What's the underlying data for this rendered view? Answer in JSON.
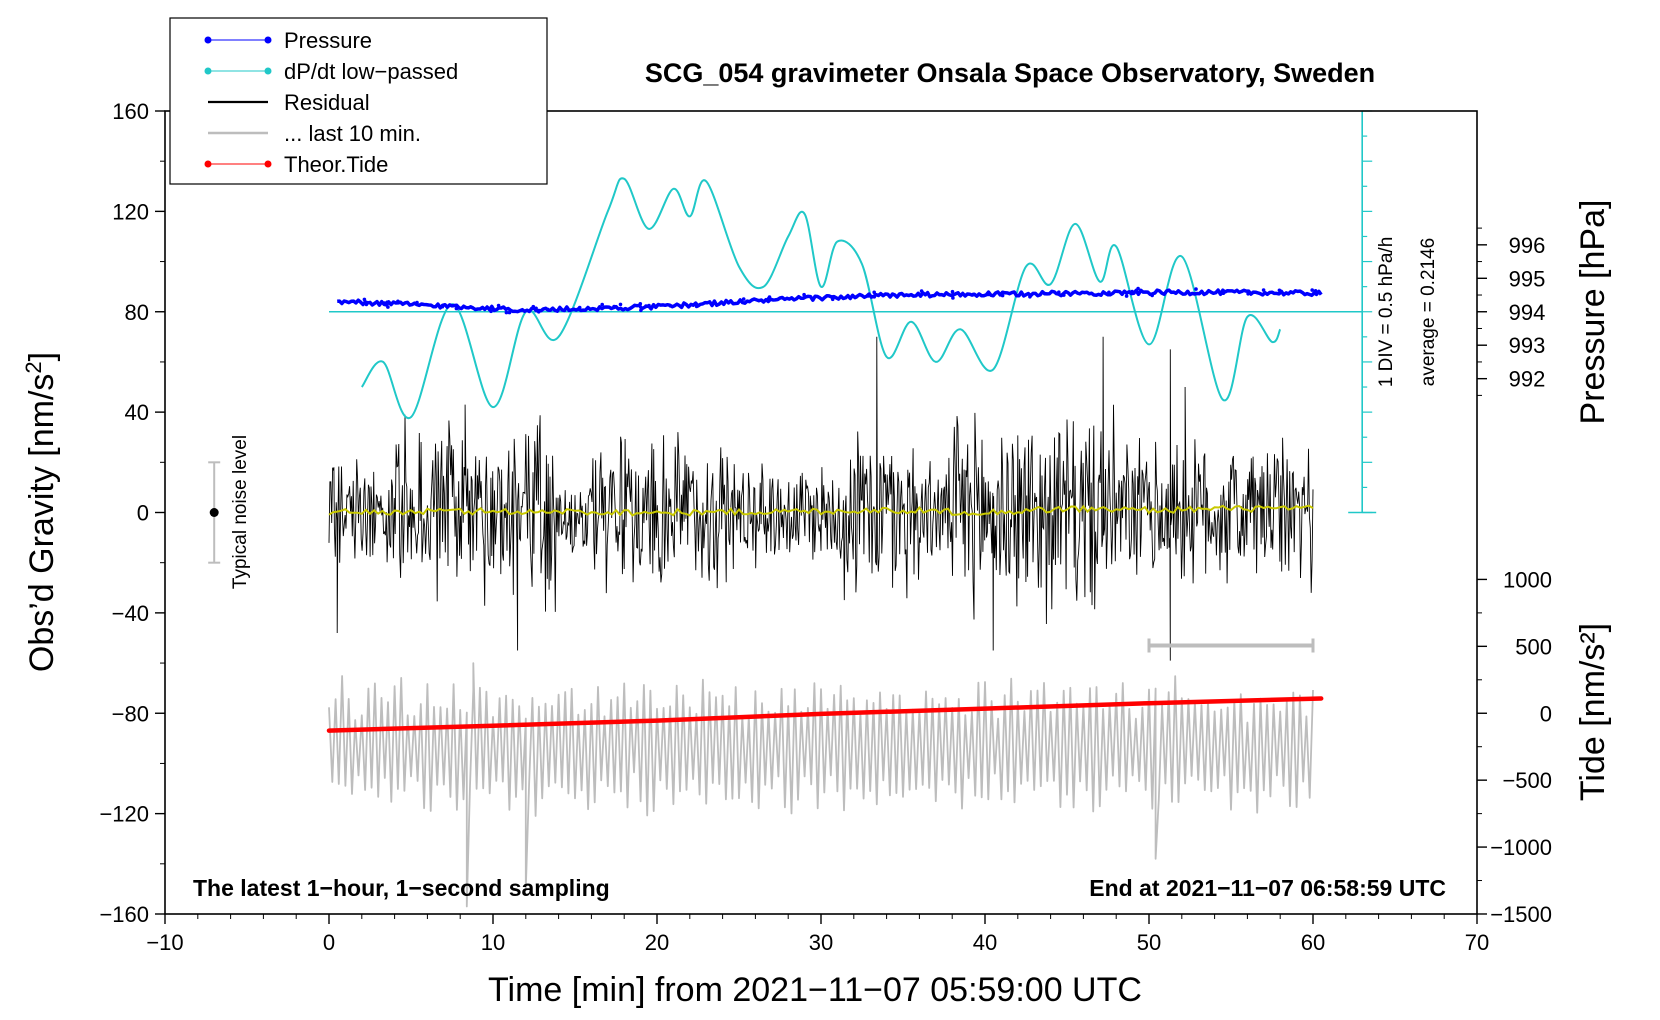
{
  "chart_data": {
    "type": "line",
    "title": "SCG_054 gravimeter Onsala Space Observatory, Sweden",
    "xlabel": "Time [min] from 2021−11−07 05:59:00 UTC",
    "ylabel_left": "Obs’d Gravity [nm/s²]",
    "ylabel_right_pressure": "Pressure [hPa]",
    "ylabel_right_tide": "Tide [nm/s²]",
    "xlim": [
      -10,
      70
    ],
    "ylim": [
      -160,
      160
    ],
    "xticks": [
      -10,
      0,
      10,
      20,
      30,
      40,
      50,
      60,
      70
    ],
    "xtick_labels": [
      "−10",
      "0",
      "10",
      "20",
      "30",
      "40",
      "50",
      "60",
      "70"
    ],
    "yticks": [
      -160,
      -120,
      -80,
      -40,
      0,
      40,
      80,
      120,
      160
    ],
    "ytick_labels": [
      "−160",
      "−120",
      "−80",
      "−40",
      "0",
      "40",
      "80",
      "120",
      "160"
    ],
    "pressure_axis": {
      "ticks": [
        992,
        993,
        994,
        995,
        996
      ],
      "tick_labels": [
        "992",
        "993",
        "994",
        "995",
        "996"
      ],
      "gravity_at_994": 80,
      "gravity_per_hpa": 13.333
    },
    "tide_axis": {
      "ticks": [
        -1500,
        -1000,
        -500,
        0,
        500,
        1000
      ],
      "tick_labels": [
        "−1500",
        "−1000",
        "−500",
        "0",
        "500",
        "1000"
      ],
      "gravity_at_zero": -80,
      "gravity_per_unit": 0.05333
    },
    "legend": [
      {
        "label": "Pressure",
        "color": "#0000ff",
        "style": "line-dot"
      },
      {
        "label": "dP/dt low−passed",
        "color": "#20c8c8",
        "style": "line-dot"
      },
      {
        "label": "Residual",
        "color": "#000000",
        "style": "line"
      },
      {
        "label": "... last 10 min.",
        "color": "#bdbdbd",
        "style": "line"
      },
      {
        "label": "Theor.Tide",
        "color": "#ff0000",
        "style": "line-dot"
      }
    ],
    "series": [
      {
        "name": "Pressure",
        "unit": "hPa",
        "color": "#0000ff",
        "x": [
          0.5,
          5,
          10,
          12,
          15,
          20,
          25,
          30,
          35,
          40,
          45,
          50,
          55,
          60.5
        ],
        "values": [
          994.3,
          994.22,
          994.1,
          994.05,
          994.08,
          994.15,
          994.3,
          994.42,
          994.5,
          994.52,
          994.55,
          994.58,
          994.58,
          994.55
        ]
      },
      {
        "name": "dP/dt low−passed",
        "color": "#20c8c8",
        "x": [
          2,
          3.3,
          5,
          7.5,
          10,
          12,
          14,
          17,
          18,
          19.5,
          21,
          22,
          23,
          25,
          26.5,
          28,
          29,
          30,
          31,
          32.5,
          34,
          35.5,
          37,
          38.5,
          40.5,
          42.5,
          44,
          45.5,
          47,
          48,
          50,
          52,
          54.5,
          56,
          57.5,
          58
        ],
        "values": [
          50,
          60,
          38,
          83,
          42,
          80,
          70,
          120,
          133,
          113,
          129,
          118,
          132,
          98,
          90,
          110,
          119,
          90,
          108,
          99,
          62,
          76,
          60,
          73,
          57,
          98,
          91,
          115,
          92,
          106,
          67,
          102,
          45,
          78,
          68,
          73
        ]
      },
      {
        "name": "dP/dt reference line",
        "color": "#20c8c8",
        "x": [
          0,
          63
        ],
        "values": [
          80,
          80
        ]
      },
      {
        "name": "Residual",
        "color": "#000000",
        "x_range": [
          0,
          60
        ],
        "bursts": [
          {
            "x": [
              0,
              4
            ],
            "amp": 22
          },
          {
            "x": [
              4,
              14
            ],
            "amp": 42
          },
          {
            "x": [
              14,
              16
            ],
            "amp": 20
          },
          {
            "x": [
              16,
              25
            ],
            "amp": 36
          },
          {
            "x": [
              25,
              31
            ],
            "amp": 24
          },
          {
            "x": [
              31,
              36
            ],
            "amp": 40
          },
          {
            "x": [
              36,
              38
            ],
            "amp": 24
          },
          {
            "x": [
              38,
              48
            ],
            "amp": 46
          },
          {
            "x": [
              48,
              60
            ],
            "amp": 34
          }
        ],
        "extremes": [
          {
            "x": 0.3,
            "y": 18
          },
          {
            "x": 0.5,
            "y": -48
          },
          {
            "x": 8.3,
            "y": 43
          },
          {
            "x": 11.5,
            "y": -55
          },
          {
            "x": 33.4,
            "y": 70
          },
          {
            "x": 40.5,
            "y": -55
          },
          {
            "x": 47.2,
            "y": 70
          },
          {
            "x": 51.3,
            "y": -59
          },
          {
            "x": 51.3,
            "y": 65
          },
          {
            "x": 52.2,
            "y": 50
          }
        ]
      },
      {
        "name": "Residual smoothed",
        "color": "#c8c800",
        "x": [
          0,
          10,
          20,
          30,
          34,
          40,
          45,
          50,
          55,
          60
        ],
        "values": [
          0,
          0.5,
          0,
          0.5,
          1,
          0,
          1.5,
          1,
          1.5,
          1.5
        ]
      },
      {
        "name": "... last 10 min.",
        "color": "#bdbdbd",
        "x_range": [
          0,
          60
        ],
        "center": -93,
        "amp": 22,
        "extremes": [
          {
            "x": 8.4,
            "y": -157
          },
          {
            "x": 8.8,
            "y": -60
          },
          {
            "x": 12,
            "y": -150
          },
          {
            "x": 50.4,
            "y": -138
          }
        ]
      },
      {
        "name": "Theor.Tide",
        "unit": "nm/s²",
        "color": "#ff0000",
        "x": [
          0,
          10,
          20,
          30,
          40,
          50,
          60.5
        ],
        "values": [
          -130,
          -93,
          -55,
          -5,
          35,
          75,
          110
        ]
      }
    ],
    "annotations": {
      "noise_label": "Typical noise level",
      "noise_bar": {
        "x": -7,
        "y": 0,
        "half_range": 20
      },
      "scale_label_div": "1 DIV = 0.5 hPa/h",
      "scale_label_avg": "average = 0.2146",
      "scale_axis": {
        "x": 63,
        "y_range": [
          0,
          160
        ]
      },
      "gray_range_bar": {
        "x_range": [
          50,
          60
        ],
        "y": -53
      },
      "footer_left": "The latest 1−hour, 1−second sampling",
      "footer_right": "End at 2021−11−07 06:58:59 UTC"
    }
  }
}
